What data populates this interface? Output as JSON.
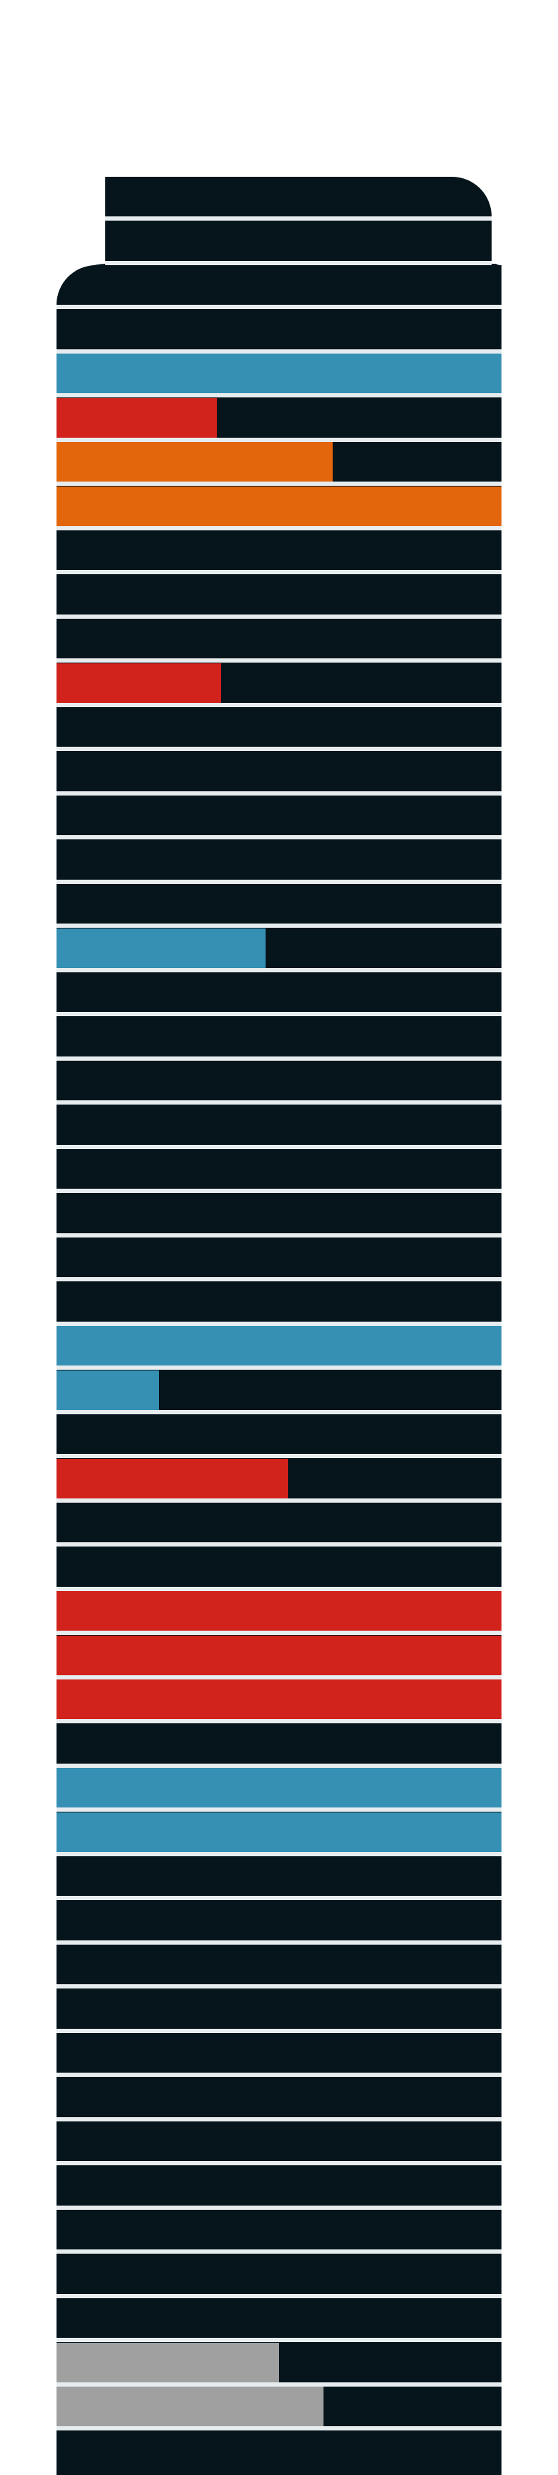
{
  "colors": {
    "background": "#ffffff",
    "building": "#06141b",
    "separator": "#e7ecef",
    "blue": "#3590b4",
    "red": "#d1221c",
    "orange": "#e3660c",
    "gray": "#a0a0a0"
  },
  "floors": [
    {
      "fill": 0,
      "color": "blue"
    },
    {
      "fill": 0,
      "color": "blue"
    },
    {
      "fill": 0,
      "color": "blue"
    },
    {
      "fill": 0,
      "color": "blue"
    },
    {
      "fill": 1.0,
      "color": "blue"
    },
    {
      "fill": 0.36,
      "color": "red"
    },
    {
      "fill": 0.62,
      "color": "orange"
    },
    {
      "fill": 1.0,
      "color": "orange"
    },
    {
      "fill": 0,
      "color": "blue"
    },
    {
      "fill": 0,
      "color": "blue"
    },
    {
      "fill": 0,
      "color": "blue"
    },
    {
      "fill": 0.37,
      "color": "red"
    },
    {
      "fill": 0,
      "color": "blue"
    },
    {
      "fill": 0,
      "color": "blue"
    },
    {
      "fill": 0,
      "color": "blue"
    },
    {
      "fill": 0,
      "color": "blue"
    },
    {
      "fill": 0,
      "color": "blue"
    },
    {
      "fill": 0.47,
      "color": "blue"
    },
    {
      "fill": 0,
      "color": "blue"
    },
    {
      "fill": 0,
      "color": "blue"
    },
    {
      "fill": 0,
      "color": "blue"
    },
    {
      "fill": 0,
      "color": "blue"
    },
    {
      "fill": 0,
      "color": "blue"
    },
    {
      "fill": 0,
      "color": "blue"
    },
    {
      "fill": 0,
      "color": "blue"
    },
    {
      "fill": 0,
      "color": "blue"
    },
    {
      "fill": 1.0,
      "color": "blue"
    },
    {
      "fill": 0.23,
      "color": "blue"
    },
    {
      "fill": 0,
      "color": "blue"
    },
    {
      "fill": 0.52,
      "color": "red"
    },
    {
      "fill": 0,
      "color": "blue"
    },
    {
      "fill": 0,
      "color": "blue"
    },
    {
      "fill": 1.0,
      "color": "red"
    },
    {
      "fill": 1.0,
      "color": "red"
    },
    {
      "fill": 1.0,
      "color": "red"
    },
    {
      "fill": 0,
      "color": "blue"
    },
    {
      "fill": 1.0,
      "color": "blue"
    },
    {
      "fill": 1.0,
      "color": "blue"
    },
    {
      "fill": 0,
      "color": "blue"
    },
    {
      "fill": 0,
      "color": "blue"
    },
    {
      "fill": 0,
      "color": "blue"
    },
    {
      "fill": 0,
      "color": "blue"
    },
    {
      "fill": 0,
      "color": "blue"
    },
    {
      "fill": 0,
      "color": "blue"
    },
    {
      "fill": 0,
      "color": "blue"
    },
    {
      "fill": 0,
      "color": "blue"
    },
    {
      "fill": 0,
      "color": "blue"
    },
    {
      "fill": 0,
      "color": "blue"
    },
    {
      "fill": 0,
      "color": "blue"
    },
    {
      "fill": 0.5,
      "color": "gray"
    },
    {
      "fill": 0.6,
      "color": "gray"
    }
  ]
}
